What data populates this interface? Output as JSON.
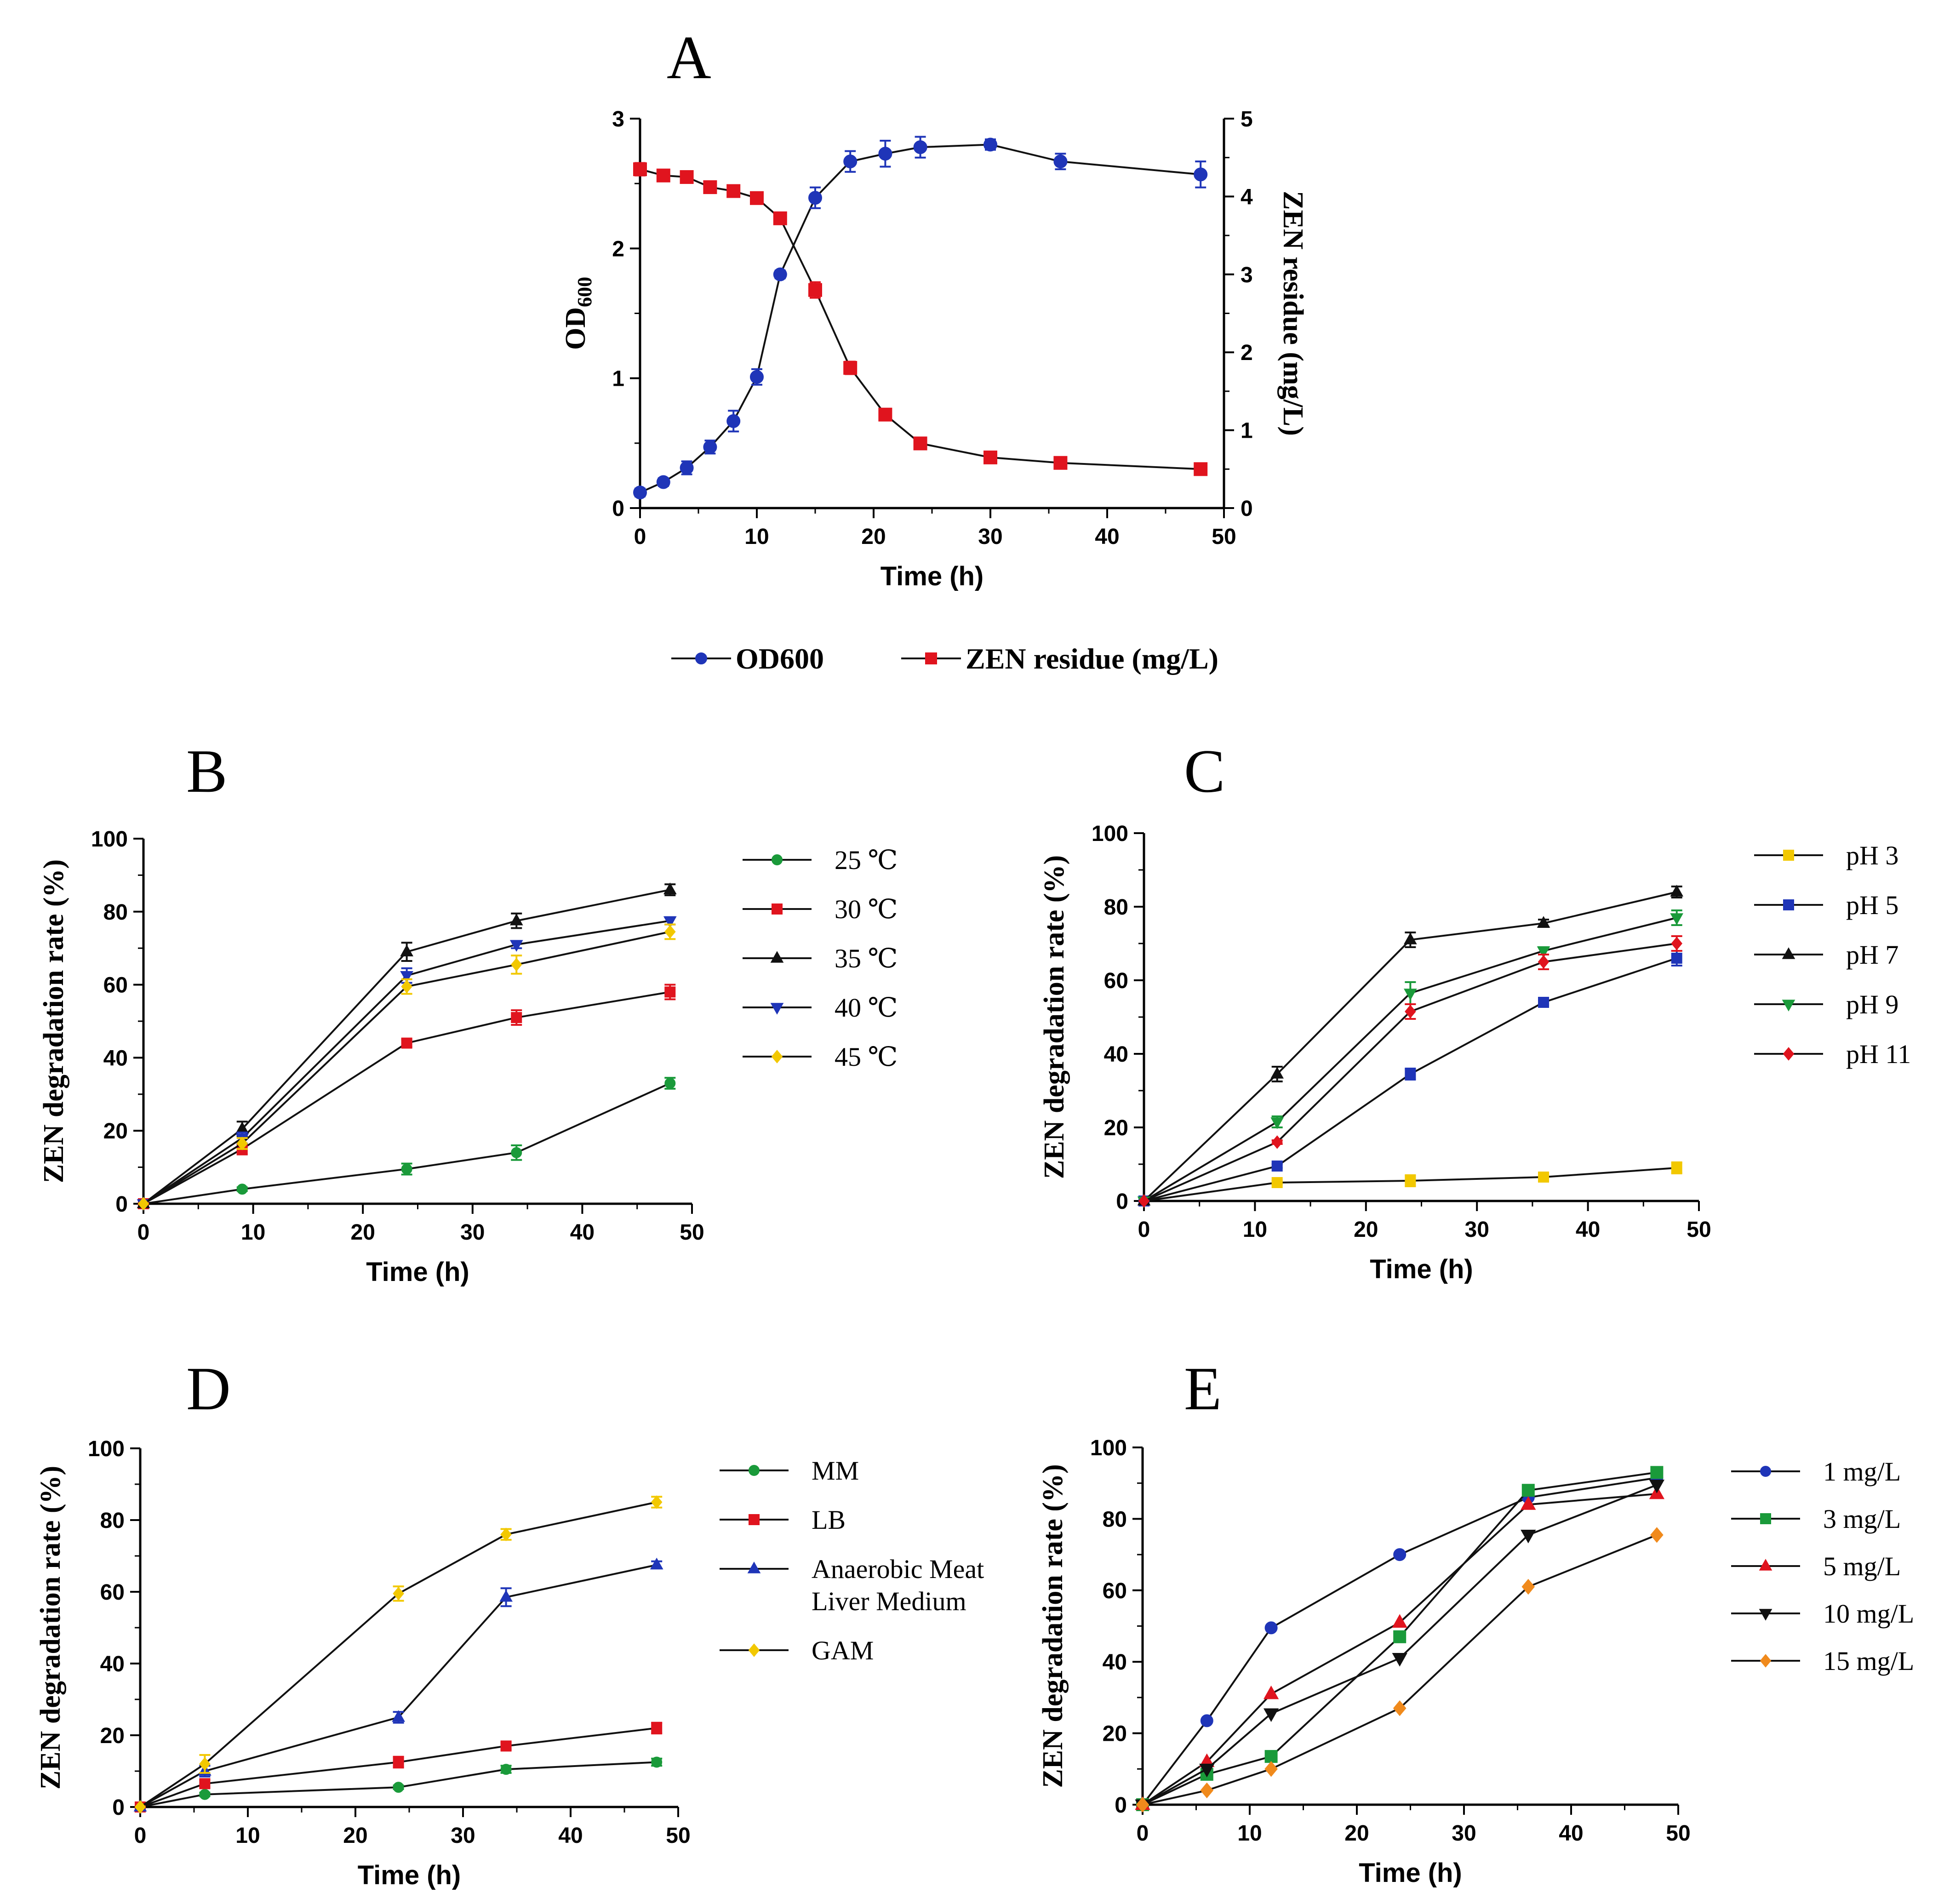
{
  "figure": {
    "letters": [
      "A",
      "B",
      "C",
      "D",
      "E"
    ]
  },
  "chart_data": [
    {
      "panel": "A",
      "type": "line",
      "xlabel": "Time (h)",
      "ylabel": "OD600",
      "ylabel_main": "OD",
      "ylabel_sub": "600",
      "y2label": "ZEN residue (mg/L)",
      "xlim": [
        0,
        50
      ],
      "ylim": [
        0,
        3
      ],
      "y2lim": [
        0,
        5
      ],
      "xticks": [
        0,
        10,
        20,
        30,
        40,
        50
      ],
      "yticks": [
        0,
        1,
        2,
        3
      ],
      "y2ticks": [
        0,
        1,
        2,
        3,
        4,
        5
      ],
      "grid": false,
      "legend_position": "bottom",
      "series": [
        {
          "name": "OD600",
          "axis": "left",
          "color": "#1f35b8",
          "marker": "circle",
          "x": [
            0,
            2,
            4,
            6,
            8,
            10,
            12,
            15,
            18,
            21,
            24,
            30,
            36,
            48
          ],
          "y": [
            0.12,
            0.2,
            0.31,
            0.47,
            0.67,
            1.01,
            1.8,
            2.39,
            2.67,
            2.73,
            2.78,
            2.8,
            2.67,
            2.57
          ],
          "err": [
            0.03,
            0.03,
            0.05,
            0.05,
            0.08,
            0.06,
            0.03,
            0.08,
            0.08,
            0.1,
            0.08,
            0.04,
            0.06,
            0.1
          ]
        },
        {
          "name": "ZEN residue (mg/L)",
          "axis": "right",
          "color": "#e0141e",
          "marker": "square",
          "x": [
            0,
            2,
            4,
            6,
            8,
            10,
            12,
            15,
            18,
            21,
            24,
            30,
            36,
            48
          ],
          "y": [
            4.35,
            4.27,
            4.25,
            4.12,
            4.07,
            3.98,
            3.72,
            2.8,
            1.8,
            1.2,
            0.83,
            0.65,
            0.58,
            0.5
          ],
          "err": [
            0.08,
            0.04,
            0.04,
            0.06,
            0.04,
            0.03,
            0.03,
            0.1,
            0.08,
            0.04,
            0.03,
            0.04,
            0.03,
            0.02
          ]
        }
      ]
    },
    {
      "panel": "B",
      "type": "line",
      "xlabel": "Time (h)",
      "ylabel": "ZEN degradation rate (%)",
      "xlim": [
        0,
        50
      ],
      "ylim": [
        0,
        100
      ],
      "xticks": [
        0,
        10,
        20,
        30,
        40,
        50
      ],
      "yticks": [
        0,
        20,
        40,
        60,
        80,
        100
      ],
      "grid": false,
      "legend_position": "right",
      "series": [
        {
          "name": "25 ℃",
          "color": "#1a9a3a",
          "marker": "circle",
          "x": [
            0,
            9,
            24,
            34,
            48
          ],
          "y": [
            0,
            4,
            9.5,
            14,
            33
          ],
          "err": [
            0,
            0.5,
            1.5,
            2,
            1.5
          ]
        },
        {
          "name": "30 ℃",
          "color": "#e0141e",
          "marker": "square",
          "x": [
            0,
            9,
            24,
            34,
            48
          ],
          "y": [
            0,
            15,
            44,
            51,
            58
          ],
          "err": [
            0,
            1.5,
            1,
            2,
            2
          ]
        },
        {
          "name": "35 ℃",
          "color": "#111111",
          "marker": "triangle-up",
          "x": [
            0,
            9,
            24,
            34,
            48
          ],
          "y": [
            0,
            20.5,
            69,
            77.5,
            86
          ],
          "err": [
            0,
            2,
            2.5,
            2,
            1.5
          ]
        },
        {
          "name": "40 ℃",
          "color": "#1f35b8",
          "marker": "triangle-down",
          "x": [
            0,
            9,
            24,
            34,
            48
          ],
          "y": [
            0,
            18,
            62.5,
            71,
            77.5
          ],
          "err": [
            0,
            1.5,
            2,
            1,
            1
          ]
        },
        {
          "name": "45 ℃",
          "color": "#f2c800",
          "marker": "diamond",
          "x": [
            0,
            9,
            24,
            34,
            48
          ],
          "y": [
            0,
            16.5,
            59.5,
            65.5,
            74.5
          ],
          "err": [
            0,
            1.5,
            2,
            2.5,
            2
          ]
        }
      ]
    },
    {
      "panel": "C",
      "type": "line",
      "xlabel": "Time (h)",
      "ylabel": "ZEN degradation rate (%)",
      "xlim": [
        0,
        50
      ],
      "ylim": [
        0,
        100
      ],
      "xticks": [
        0,
        10,
        20,
        30,
        40,
        50
      ],
      "yticks": [
        0,
        20,
        40,
        60,
        80,
        100
      ],
      "grid": false,
      "legend_position": "right",
      "series": [
        {
          "name": "pH 3",
          "color": "#f2c800",
          "marker": "square",
          "x": [
            0,
            12,
            24,
            36,
            48
          ],
          "y": [
            0,
            5,
            5.5,
            6.5,
            9
          ],
          "err": [
            0,
            0.5,
            1.5,
            1,
            1.5
          ]
        },
        {
          "name": "pH 5",
          "color": "#1f35b8",
          "marker": "square",
          "x": [
            0,
            12,
            24,
            36,
            48
          ],
          "y": [
            0,
            9.5,
            34.5,
            54,
            66
          ],
          "err": [
            0,
            0.5,
            1.5,
            0.5,
            2
          ]
        },
        {
          "name": "pH 7",
          "color": "#111111",
          "marker": "triangle-up",
          "x": [
            0,
            12,
            24,
            36,
            48
          ],
          "y": [
            0,
            34.5,
            71,
            75.5,
            84
          ],
          "err": [
            0,
            2,
            2,
            1,
            1.5
          ]
        },
        {
          "name": "pH 9",
          "color": "#1a9a3a",
          "marker": "triangle-down",
          "x": [
            0,
            12,
            24,
            36,
            48
          ],
          "y": [
            0,
            21.5,
            56.5,
            68,
            77
          ],
          "err": [
            0,
            1.5,
            3,
            1,
            2
          ]
        },
        {
          "name": "pH 11",
          "color": "#e0141e",
          "marker": "diamond",
          "x": [
            0,
            12,
            24,
            36,
            48
          ],
          "y": [
            0,
            16,
            51.5,
            65,
            70
          ],
          "err": [
            0,
            0.5,
            2,
            2,
            2
          ]
        }
      ]
    },
    {
      "panel": "D",
      "type": "line",
      "xlabel": "Time (h)",
      "ylabel": "ZEN degradation rate (%)",
      "xlim": [
        0,
        50
      ],
      "ylim": [
        0,
        100
      ],
      "xticks": [
        0,
        10,
        20,
        30,
        40,
        50
      ],
      "yticks": [
        0,
        20,
        40,
        60,
        80,
        100
      ],
      "grid": false,
      "legend_position": "right",
      "series": [
        {
          "name": "MM",
          "color": "#1a9a3a",
          "marker": "circle",
          "x": [
            0,
            6,
            24,
            34,
            48
          ],
          "y": [
            0,
            3.5,
            5.5,
            10.5,
            12.5
          ],
          "err": [
            0,
            0.5,
            0.5,
            1,
            1
          ]
        },
        {
          "name": "LB",
          "color": "#e0141e",
          "marker": "square",
          "x": [
            0,
            6,
            24,
            34,
            48
          ],
          "y": [
            0,
            6.5,
            12.5,
            17,
            22
          ],
          "err": [
            0,
            1,
            1.5,
            1,
            1.5
          ]
        },
        {
          "name": "Anaerobic Meat Liver Medium",
          "label_lines": [
            "Anaerobic Meat",
            "Liver Medium"
          ],
          "color": "#1f35b8",
          "marker": "triangle-up",
          "x": [
            0,
            6,
            24,
            34,
            48
          ],
          "y": [
            0,
            10,
            25,
            58.5,
            67.5
          ],
          "err": [
            0,
            1.5,
            1.5,
            2.5,
            1
          ]
        },
        {
          "name": "GAM",
          "color": "#f2c800",
          "marker": "diamond",
          "x": [
            0,
            6,
            24,
            34,
            48
          ],
          "y": [
            0,
            12,
            59.5,
            76,
            85
          ],
          "err": [
            0,
            2.5,
            2,
            1.5,
            1.5
          ]
        }
      ]
    },
    {
      "panel": "E",
      "type": "line",
      "xlabel": "Time (h)",
      "ylabel": "ZEN degradation rate (%)",
      "xlim": [
        0,
        50
      ],
      "ylim": [
        0,
        100
      ],
      "xticks": [
        0,
        10,
        20,
        30,
        40,
        50
      ],
      "yticks": [
        0,
        20,
        40,
        60,
        80,
        100
      ],
      "grid": false,
      "legend_position": "right",
      "series": [
        {
          "name": "1 mg/L",
          "color": "#1f35b8",
          "marker": "circle",
          "x": [
            0,
            6,
            12,
            24,
            36,
            48
          ],
          "y": [
            0,
            23.5,
            49.5,
            70,
            86,
            91.5
          ],
          "err": [
            0,
            0,
            0,
            0,
            0,
            0
          ]
        },
        {
          "name": "3 mg/L",
          "color": "#1a9a3a",
          "marker": "square",
          "x": [
            0,
            6,
            12,
            24,
            36,
            48
          ],
          "y": [
            0,
            8.5,
            13.5,
            47,
            88,
            93
          ],
          "err": [
            0,
            0,
            0,
            0,
            0,
            0
          ]
        },
        {
          "name": "5 mg/L",
          "color": "#e0141e",
          "marker": "triangle-up",
          "x": [
            0,
            6,
            12,
            24,
            36,
            48
          ],
          "y": [
            0,
            12,
            31,
            51,
            84,
            87
          ],
          "err": [
            0,
            0,
            0,
            0,
            0,
            0
          ]
        },
        {
          "name": "10 mg/L",
          "color": "#111111",
          "marker": "triangle-down",
          "x": [
            0,
            6,
            12,
            24,
            36,
            48
          ],
          "y": [
            0,
            10,
            25.5,
            41,
            75.5,
            89.5
          ],
          "err": [
            0,
            0,
            0,
            0,
            0,
            0
          ]
        },
        {
          "name": "15 mg/L",
          "color": "#f08a1c",
          "marker": "diamond",
          "x": [
            0,
            6,
            12,
            24,
            36,
            48
          ],
          "y": [
            0,
            4,
            10,
            27,
            61,
            75.5
          ],
          "err": [
            0,
            0,
            0,
            0,
            0,
            0
          ]
        }
      ]
    }
  ]
}
